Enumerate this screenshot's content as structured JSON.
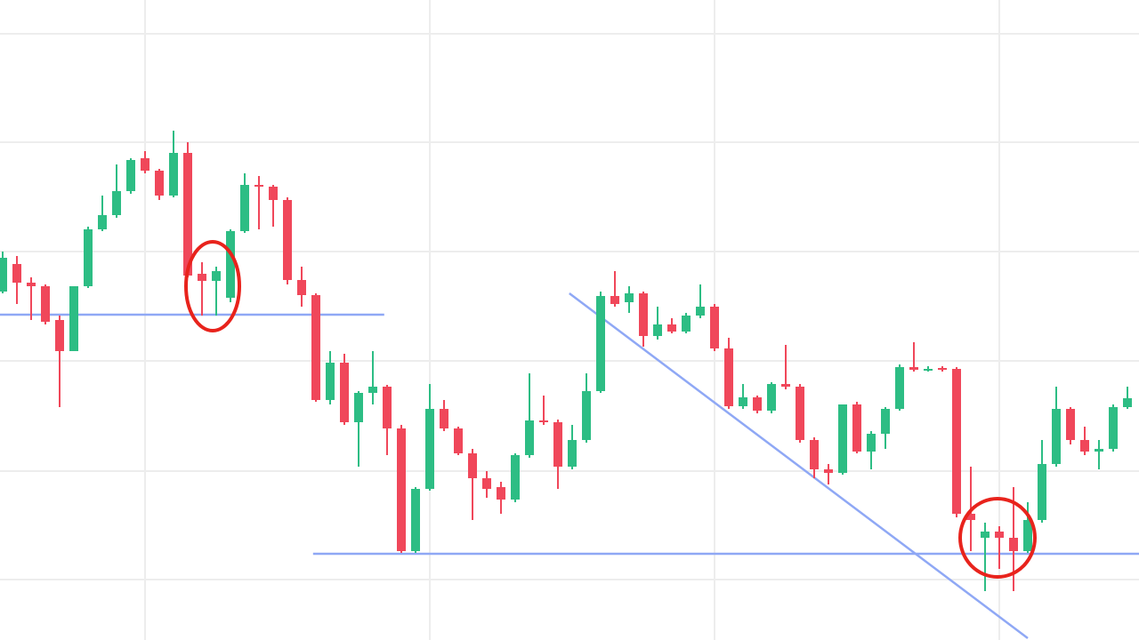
{
  "chart_data": {
    "type": "candlestick",
    "ylim": [
      0,
      720
    ],
    "yticks": [
      68,
      190,
      314,
      437,
      560,
      682
    ],
    "grid": true,
    "up_color": "#2dbd84",
    "down_color": "#f0475a",
    "open": [
      392,
      423,
      402,
      398,
      360,
      325,
      398,
      462,
      478,
      505,
      542,
      528,
      500,
      548,
      412,
      404,
      385,
      460,
      512,
      510,
      495,
      405,
      388,
      270,
      312,
      245,
      278,
      285,
      238,
      100,
      170,
      260,
      238,
      210,
      182,
      172,
      158,
      208,
      247,
      245,
      195,
      225,
      280,
      387,
      380,
      390,
      342,
      355,
      347,
      365,
      375,
      328,
      263,
      273,
      258,
      288,
      285,
      225,
      192,
      188,
      265,
      212,
      232,
      260,
      307,
      305,
      306,
      305,
      142,
      115,
      122,
      115,
      100,
      135,
      198,
      260,
      225,
      212,
      215,
      262
    ],
    "high": [
      437,
      432,
      408,
      400,
      365,
      398,
      465,
      500,
      535,
      542,
      550,
      530,
      573,
      560,
      425,
      420,
      462,
      525,
      522,
      512,
      498,
      420,
      390,
      325,
      322,
      280,
      325,
      287,
      242,
      172,
      288,
      270,
      240,
      215,
      190,
      178,
      210,
      300,
      275,
      248,
      242,
      300,
      392,
      415,
      398,
      392,
      375,
      362,
      368,
      400,
      378,
      340,
      288,
      275,
      290,
      332,
      288,
      228,
      198,
      265,
      268,
      235,
      262,
      310,
      335,
      308,
      308,
      307,
      195,
      132,
      128,
      172,
      155,
      225,
      285,
      262,
      240,
      225,
      265,
      285
    ],
    "low": [
      390,
      378,
      360,
      355,
      262,
      325,
      396,
      460,
      475,
      502,
      525,
      495,
      498,
      408,
      365,
      365,
      380,
      458,
      462,
      465,
      400,
      375,
      268,
      265,
      242,
      195,
      265,
      208,
      98,
      98,
      168,
      235,
      208,
      135,
      160,
      142,
      155,
      205,
      242,
      170,
      192,
      222,
      278,
      375,
      368,
      330,
      338,
      345,
      345,
      362,
      325,
      260,
      260,
      255,
      255,
      282,
      222,
      182,
      175,
      186,
      210,
      192,
      215,
      258,
      302,
      302,
      302,
      138,
      100,
      55,
      80,
      55,
      98,
      132,
      195,
      220,
      208,
      192,
      212,
      260
    ],
    "close": [
      430,
      402,
      398,
      358,
      325,
      398,
      462,
      478,
      505,
      540,
      528,
      500,
      548,
      410,
      404,
      415,
      460,
      512,
      510,
      495,
      405,
      388,
      270,
      312,
      245,
      278,
      285,
      238,
      100,
      170,
      260,
      238,
      210,
      182,
      170,
      158,
      208,
      247,
      245,
      195,
      225,
      280,
      387,
      378,
      390,
      342,
      355,
      347,
      365,
      375,
      328,
      263,
      273,
      258,
      288,
      285,
      225,
      192,
      188,
      265,
      212,
      232,
      260,
      307,
      304,
      305,
      304,
      142,
      135,
      122,
      115,
      100,
      135,
      198,
      260,
      225,
      212,
      215,
      262,
      272
    ],
    "line_color": "#8fa8f5",
    "lines": [
      {
        "x": [
          -0.2,
          26.8
        ],
        "y": [
          366,
          366
        ]
      },
      {
        "x": [
          21.8,
          80
        ],
        "y": [
          97,
          97
        ]
      },
      {
        "x": [
          39.8,
          72
        ],
        "y": [
          390,
          2
        ]
      }
    ]
  }
}
